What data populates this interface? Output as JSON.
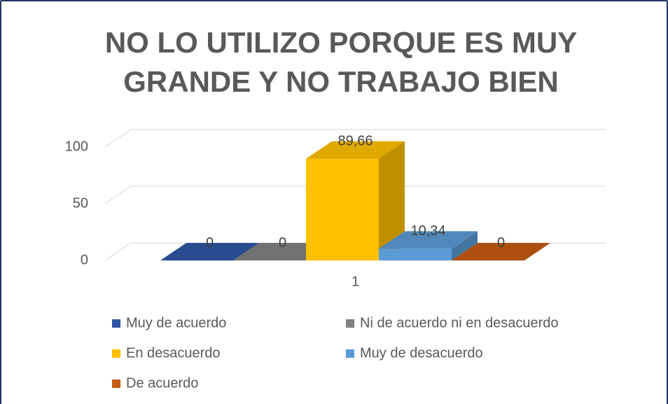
{
  "chart_data": {
    "type": "bar3d",
    "title": [
      "NO LO UTILIZO PORQUE ES MUY",
      "GRANDE Y NO TRABAJO BIEN"
    ],
    "categories": [
      "1"
    ],
    "series": [
      {
        "name": "Muy de acuerdo",
        "color": "#2f55a4",
        "values": [
          0
        ],
        "value_labels": [
          "0"
        ]
      },
      {
        "name": "Ni de acuerdo ni en desacuerdo",
        "color": "#808080",
        "values": [
          0
        ],
        "value_labels": [
          "0"
        ]
      },
      {
        "name": "En desacuerdo",
        "color": "#ffc000",
        "values": [
          89.66
        ],
        "value_labels": [
          "89,66"
        ]
      },
      {
        "name": "Muy de desacuerdo",
        "color": "#5b9bd5",
        "values": [
          10.34
        ],
        "value_labels": [
          "10,34"
        ]
      },
      {
        "name": "De acuerdo",
        "color": "#c55a11",
        "values": [
          0
        ],
        "value_labels": [
          "0"
        ]
      }
    ],
    "ylim": [
      0,
      100
    ],
    "yticks": [
      0,
      50,
      100
    ],
    "grid": true
  }
}
